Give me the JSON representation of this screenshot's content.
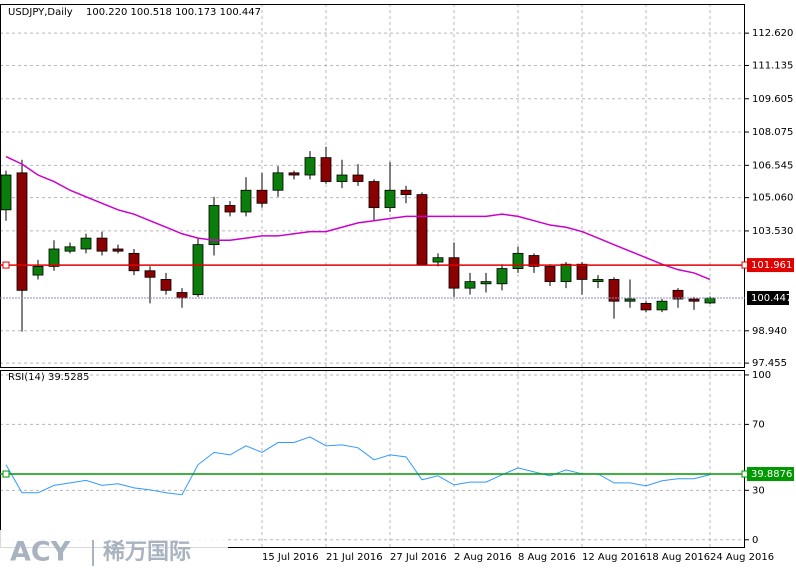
{
  "chart_data": [
    {
      "type": "candlestick",
      "title": "USDJPY,Daily",
      "ohlc_text": "100.220 100.518 100.173 100.447",
      "categories": [
        null,
        null,
        null,
        null,
        null,
        null,
        null,
        null,
        null,
        null,
        null,
        null,
        null,
        null,
        null,
        null,
        "15 Jul 2016",
        null,
        null,
        null,
        "21 Jul 2016",
        null,
        null,
        null,
        "27 Jul 2016",
        null,
        null,
        null,
        "2 Aug 2016",
        null,
        null,
        null,
        "8 Aug 2016",
        null,
        null,
        null,
        "12 Aug 2016",
        null,
        null,
        null,
        "18 Aug 2016",
        null,
        null,
        null,
        "24 Aug 2016"
      ],
      "open": [
        104.5,
        106.2,
        101.5,
        101.9,
        102.6,
        102.7,
        103.2,
        102.7,
        102.5,
        101.7,
        101.3,
        100.7,
        100.6,
        102.9,
        104.7,
        104.4,
        105.4,
        105.4,
        106.2,
        106.1,
        106.9,
        105.8,
        106.1,
        105.8,
        104.6,
        105.4,
        105.2,
        102.1,
        102.3,
        100.9,
        101.1,
        101.1,
        101.8,
        102.4,
        101.9,
        101.2,
        102.0,
        101.2,
        101.3,
        100.3,
        100.2,
        99.9,
        100.8,
        100.4,
        100.22
      ],
      "high": [
        106.3,
        106.8,
        102.2,
        103.1,
        103.0,
        103.4,
        103.5,
        102.9,
        102.7,
        101.9,
        101.6,
        100.9,
        103.2,
        105.1,
        104.9,
        106.0,
        106.2,
        106.5,
        106.3,
        107.2,
        107.4,
        106.8,
        106.6,
        105.9,
        106.7,
        105.6,
        105.3,
        102.5,
        103.0,
        101.6,
        101.6,
        102.0,
        102.8,
        102.5,
        102.0,
        102.1,
        102.1,
        101.5,
        101.4,
        101.3,
        100.3,
        100.4,
        100.9,
        100.5,
        100.518
      ],
      "low": [
        104.0,
        98.9,
        101.3,
        101.7,
        102.5,
        102.5,
        102.4,
        102.5,
        101.5,
        100.2,
        100.6,
        100.0,
        100.5,
        102.4,
        104.2,
        104.2,
        104.6,
        105.1,
        105.9,
        105.9,
        105.7,
        105.5,
        105.6,
        104.0,
        104.4,
        104.8,
        102.0,
        101.9,
        100.5,
        100.6,
        100.7,
        100.8,
        101.6,
        101.6,
        101.0,
        100.9,
        100.6,
        100.9,
        99.5,
        100.0,
        99.8,
        99.8,
        100.0,
        99.9,
        100.173
      ],
      "close": [
        106.1,
        100.8,
        101.9,
        102.7,
        102.8,
        103.2,
        102.6,
        102.6,
        101.7,
        101.4,
        100.8,
        100.45,
        102.9,
        104.7,
        104.4,
        105.4,
        104.8,
        106.2,
        106.1,
        106.9,
        105.8,
        106.1,
        105.8,
        104.6,
        105.4,
        105.2,
        102.0,
        102.3,
        100.9,
        101.2,
        101.2,
        101.8,
        102.5,
        101.9,
        101.2,
        102.0,
        101.3,
        101.3,
        100.3,
        100.4,
        99.9,
        100.3,
        100.4,
        100.3,
        100.447
      ],
      "up_color": "#0b7d0b",
      "down_color": "#8b0000",
      "ma": {
        "color": "#cc00cc",
        "values": [
          106.95,
          106.6,
          106.1,
          105.8,
          105.4,
          105.1,
          104.8,
          104.5,
          104.3,
          104.0,
          103.7,
          103.4,
          103.2,
          103.1,
          103.1,
          103.2,
          103.3,
          103.3,
          103.4,
          103.5,
          103.5,
          103.7,
          103.9,
          104.0,
          104.1,
          104.2,
          104.2,
          104.2,
          104.2,
          104.2,
          104.2,
          104.3,
          104.2,
          104.0,
          103.8,
          103.7,
          103.5,
          103.2,
          102.9,
          102.6,
          102.3,
          102.0,
          101.75,
          101.6,
          101.3
        ]
      },
      "hlines": [
        {
          "value": 101.961,
          "label": "101.961",
          "color": "#e00000"
        }
      ],
      "last": {
        "value": 100.447,
        "label": "100.447"
      },
      "ylim": [
        97.23,
        113.96
      ],
      "yticks": [
        {
          "value": 97.455,
          "label": "97.455"
        },
        {
          "value": 98.94,
          "label": "98.940"
        },
        {
          "value": 103.53,
          "label": "103.530"
        },
        {
          "value": 105.06,
          "label": "105.060"
        },
        {
          "value": 106.545,
          "label": "106.545"
        },
        {
          "value": 108.075,
          "label": "108.075"
        },
        {
          "value": 109.605,
          "label": "109.605"
        },
        {
          "value": 111.135,
          "label": "111.135"
        },
        {
          "value": 112.62,
          "label": "112.620"
        }
      ],
      "grid": true
    },
    {
      "type": "line",
      "title": "RSI(14) 39.5285",
      "series": [
        {
          "color": "#3399ff",
          "values": [
            45.5,
            28.5,
            28.5,
            33,
            34.5,
            36,
            33,
            34,
            31.5,
            30.3,
            28.5,
            27.3,
            45.5,
            53,
            51.5,
            57,
            53,
            59,
            59,
            62.4,
            57,
            57.6,
            55.8,
            48.5,
            51.5,
            50.3,
            36.4,
            38.8,
            33.3,
            35,
            35,
            39.4,
            43.6,
            41.2,
            38.8,
            42.4,
            40,
            40,
            34.5,
            34.5,
            32.7,
            35.8,
            37,
            37,
            39.5285
          ]
        }
      ],
      "hlines": [
        {
          "value": 39.8876,
          "label": "39.8876",
          "color": "#009900"
        }
      ],
      "ylim": [
        -5,
        103
      ],
      "yticks": [
        0,
        30,
        70,
        100
      ],
      "grid": true
    }
  ],
  "watermark": {
    "brand": "ACY",
    "chinese": "稀万国际"
  }
}
